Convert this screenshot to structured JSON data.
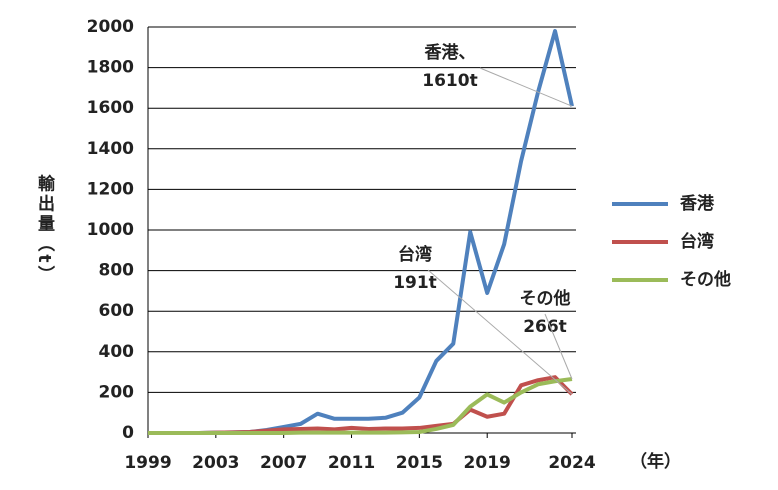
{
  "chart_data": {
    "type": "line",
    "x": [
      1999,
      2000,
      2001,
      2002,
      2003,
      2004,
      2005,
      2006,
      2007,
      2008,
      2009,
      2010,
      2011,
      2012,
      2013,
      2014,
      2015,
      2016,
      2017,
      2018,
      2019,
      2020,
      2021,
      2022,
      2023,
      2024
    ],
    "series": [
      {
        "name": "香港",
        "color": "#4f81bd",
        "values": [
          0,
          0,
          0,
          0,
          2,
          3,
          5,
          15,
          30,
          45,
          95,
          70,
          70,
          70,
          75,
          100,
          175,
          355,
          440,
          990,
          690,
          930,
          1340,
          1680,
          1980,
          1610
        ]
      },
      {
        "name": "台湾",
        "color": "#c0504d",
        "values": [
          0,
          0,
          0,
          0,
          2,
          3,
          5,
          12,
          18,
          20,
          22,
          18,
          25,
          20,
          22,
          22,
          25,
          35,
          45,
          115,
          80,
          95,
          235,
          260,
          275,
          191
        ]
      },
      {
        "name": "その他",
        "color": "#9bbb59",
        "values": [
          0,
          0,
          0,
          0,
          0,
          0,
          0,
          0,
          0,
          2,
          2,
          2,
          2,
          2,
          2,
          3,
          5,
          20,
          40,
          130,
          190,
          150,
          200,
          240,
          255,
          266
        ]
      }
    ],
    "xlim": [
      1999,
      2024
    ],
    "xticks": [
      1999,
      2003,
      2007,
      2011,
      2015,
      2019,
      2024
    ],
    "ylim": [
      0,
      2000
    ],
    "yticks": [
      0,
      200,
      400,
      600,
      800,
      1000,
      1200,
      1400,
      1600,
      1800,
      2000
    ],
    "x_label": "（年）",
    "y_label": "輸出量（t）",
    "grid": true,
    "legend": "right",
    "annotations": [
      {
        "lines": [
          "香港、",
          "1610t"
        ],
        "series": 0,
        "point": 25
      },
      {
        "lines": [
          "台湾",
          "191t"
        ],
        "series": 1,
        "point": 25
      },
      {
        "lines": [
          "その他",
          "266t"
        ],
        "series": 2,
        "point": 25
      }
    ]
  }
}
